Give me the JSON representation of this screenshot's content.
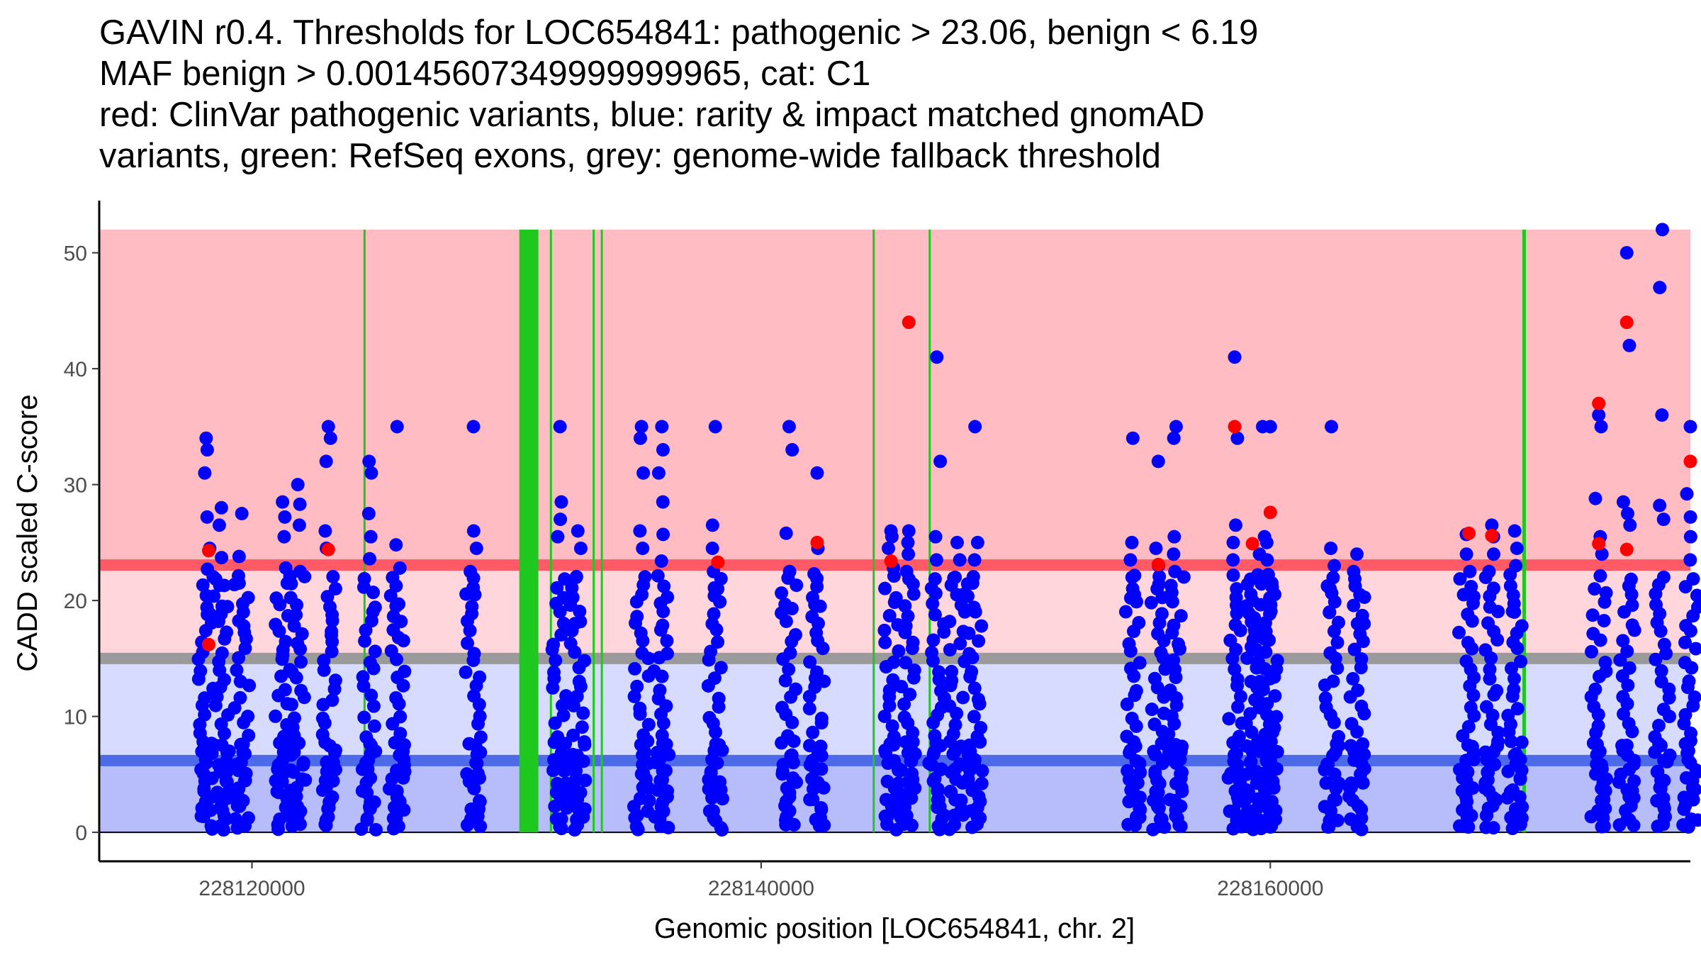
{
  "chart_data": {
    "type": "scatter",
    "title_lines": [
      "GAVIN r0.4. Thresholds for LOC654841: pathogenic > 23.06, benign < 6.19",
      "MAF benign > 0.00145607349999999965, cat: C1",
      "red: ClinVar pathogenic variants, blue: rarity & impact matched gnomAD",
      "variants, green: RefSeq exons, grey: genome-wide fallback threshold"
    ],
    "xlabel": "Genomic position [LOC654841, chr. 2]",
    "ylabel": "CADD scaled C-score",
    "xlim": [
      228114000,
      228176500
    ],
    "ylim": [
      -2.5,
      54.5
    ],
    "x_ticks": [
      {
        "value": 228120000,
        "label": "228120000"
      },
      {
        "value": 228140000,
        "label": "228140000"
      },
      {
        "value": 228160000,
        "label": "228160000"
      }
    ],
    "y_ticks": [
      {
        "value": 0,
        "label": "0"
      },
      {
        "value": 10,
        "label": "10"
      },
      {
        "value": 20,
        "label": "20"
      },
      {
        "value": 30,
        "label": "30"
      },
      {
        "value": 40,
        "label": "40"
      },
      {
        "value": 50,
        "label": "50"
      }
    ],
    "colors": {
      "pathogenic": "#ff0000",
      "benign": "#0000ff",
      "exon": "#1ec81e",
      "fallback": "#9a9a9a",
      "pathogenic_band": "#ffbcc2",
      "pathogenic_light": "#ffd6dc",
      "pathogenic_line": "#ff5a66",
      "benign_light": "#d6dbff",
      "benign_band": "#b7bdfb",
      "benign_line": "#4d6be8",
      "axis": "#000000"
    },
    "thresholds": {
      "pathogenic": 23.06,
      "benign": 6.19,
      "fallback": 15.0,
      "max": 52.0,
      "min": 0.0
    },
    "exons": [
      [
        228124380,
        228124420
      ],
      [
        228130500,
        228131250
      ],
      [
        228131700,
        228131740
      ],
      [
        228133380,
        228133420
      ],
      [
        228133700,
        228133740
      ],
      [
        228144380,
        228144420
      ],
      [
        228146580,
        228146620
      ],
      [
        228169900,
        228170040
      ]
    ],
    "benign_columns": [
      {
        "x": 228118200,
        "top": 34,
        "extras": [
          33,
          31,
          27.2,
          24.5,
          22.7,
          18.8
        ]
      },
      {
        "x": 228118800,
        "top": 28,
        "extras": [
          26.5,
          23.7,
          21.3,
          19.5
        ]
      },
      {
        "x": 228119600,
        "top": 27.5,
        "extras": [
          23.8,
          21.5,
          17.8
        ]
      },
      {
        "x": 228121200,
        "top": 28.5,
        "extras": [
          27.2,
          25.5,
          22.8,
          15.3
        ]
      },
      {
        "x": 228121800,
        "top": 30,
        "extras": [
          28.3,
          26.5,
          22.5
        ]
      },
      {
        "x": 228123000,
        "top": 35,
        "extras": [
          34,
          32,
          26,
          24.5,
          17
        ]
      },
      {
        "x": 228124600,
        "top": 32,
        "extras": [
          31,
          27.5,
          25.5,
          23.6
        ]
      },
      {
        "x": 228125700,
        "top": 35,
        "extras": [
          24.8,
          22.8,
          19.5,
          16.8
        ]
      },
      {
        "x": 228128700,
        "top": 35,
        "extras": [
          26,
          24.5,
          22.5,
          20.5
        ]
      },
      {
        "x": 228132100,
        "top": 35,
        "extras": [
          28.5,
          27,
          25.5
        ]
      },
      {
        "x": 228132800,
        "top": 26,
        "extras": [
          24.5,
          22,
          18
        ]
      },
      {
        "x": 228135300,
        "top": 35,
        "extras": [
          34,
          31,
          26,
          24.5
        ]
      },
      {
        "x": 228136100,
        "top": 35,
        "extras": [
          33,
          31,
          28.5,
          25.7,
          23.4
        ]
      },
      {
        "x": 228138200,
        "top": 35,
        "extras": [
          26.5,
          24.5,
          22.5,
          21
        ]
      },
      {
        "x": 228141100,
        "top": 35,
        "extras": [
          33,
          25.8,
          22.5,
          19.3
        ]
      },
      {
        "x": 228142200,
        "top": 31,
        "extras": [
          24.5,
          22.3,
          19.5,
          13.3
        ]
      },
      {
        "x": 228145100,
        "top": 26,
        "extras": [
          25.5,
          24.5,
          22.8
        ]
      },
      {
        "x": 228145800,
        "top": 26,
        "extras": [
          25,
          24,
          22.5
        ]
      },
      {
        "x": 228146900,
        "top": 41,
        "extras": [
          32,
          25.5,
          23.5
        ]
      },
      {
        "x": 228147700,
        "top": 25,
        "extras": [
          23.5,
          22,
          20.5
        ]
      },
      {
        "x": 228148400,
        "top": 35,
        "extras": [
          25,
          23.5,
          21.5
        ]
      },
      {
        "x": 228154600,
        "top": 34,
        "extras": [
          25,
          23.5,
          22,
          20.5
        ]
      },
      {
        "x": 228155600,
        "top": 32,
        "extras": [
          24.5,
          23,
          21
        ]
      },
      {
        "x": 228156300,
        "top": 35,
        "extras": [
          34,
          25.5,
          24,
          22.5
        ]
      },
      {
        "x": 228158600,
        "top": 41,
        "extras": [
          34,
          26.5,
          25,
          23.5
        ]
      },
      {
        "x": 228159300,
        "top": 20,
        "extras": [
          18.5,
          16,
          13
        ]
      },
      {
        "x": 228159700,
        "top": 35,
        "extras": [
          25.5,
          24,
          22
        ]
      },
      {
        "x": 228160000,
        "top": 35,
        "extras": [
          25,
          23.5,
          21.5
        ]
      },
      {
        "x": 228162400,
        "top": 35,
        "extras": [
          24.5,
          23,
          21,
          19
        ]
      },
      {
        "x": 228163400,
        "top": 24,
        "extras": [
          22.5,
          20.5,
          18
        ]
      },
      {
        "x": 228167700,
        "top": 25.7,
        "extras": [
          24,
          22.5,
          20.5
        ]
      },
      {
        "x": 228168700,
        "top": 26.5,
        "extras": [
          25.5,
          24,
          22.5
        ]
      },
      {
        "x": 228169600,
        "top": 26,
        "extras": [
          24.5,
          23,
          19
        ]
      },
      {
        "x": 228172900,
        "top": 36,
        "extras": [
          35,
          28.8,
          25.5,
          24
        ]
      },
      {
        "x": 228174000,
        "top": 50,
        "extras": [
          42,
          28.5,
          27.5,
          26.5
        ]
      },
      {
        "x": 228175400,
        "top": 52,
        "extras": [
          47,
          36,
          28.2,
          27
        ]
      },
      {
        "x": 228176500,
        "top": 35,
        "extras": [
          29.2,
          27.2,
          25.5,
          23.5
        ]
      }
    ],
    "pathogenic_points": [
      {
        "x": 228118300,
        "y": 24.3
      },
      {
        "x": 228118300,
        "y": 16.2
      },
      {
        "x": 228123000,
        "y": 24.4
      },
      {
        "x": 228138300,
        "y": 23.3
      },
      {
        "x": 228142200,
        "y": 25.0
      },
      {
        "x": 228145100,
        "y": 23.4
      },
      {
        "x": 228145800,
        "y": 44.0
      },
      {
        "x": 228155600,
        "y": 23.1
      },
      {
        "x": 228158600,
        "y": 35.0
      },
      {
        "x": 228159300,
        "y": 24.9
      },
      {
        "x": 228160000,
        "y": 27.6
      },
      {
        "x": 228167800,
        "y": 25.8
      },
      {
        "x": 228168700,
        "y": 25.6
      },
      {
        "x": 228172900,
        "y": 37.0
      },
      {
        "x": 228172900,
        "y": 24.9
      },
      {
        "x": 228174000,
        "y": 44.0
      },
      {
        "x": 228174000,
        "y": 24.4
      },
      {
        "x": 228176500,
        "y": 32.0
      }
    ]
  }
}
